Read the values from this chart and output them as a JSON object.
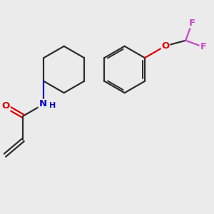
{
  "background_color": "#ebebeb",
  "bond_color": "#2d2d2d",
  "atom_colors": {
    "O": "#dd0000",
    "N": "#0000cc",
    "F": "#cc44cc",
    "C": "#2d2d2d"
  },
  "figsize": [
    3.0,
    3.0
  ],
  "dpi": 100
}
